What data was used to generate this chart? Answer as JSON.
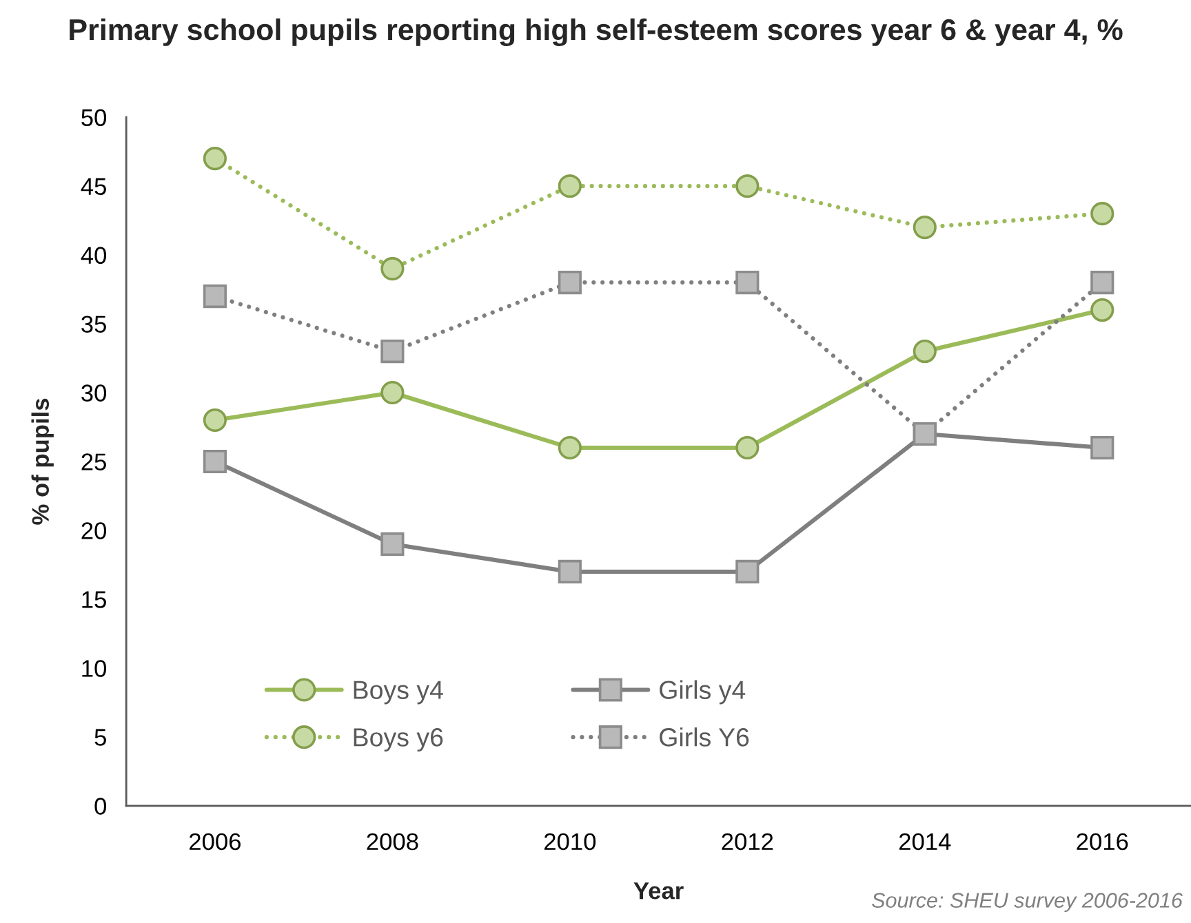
{
  "chart_data": {
    "type": "line",
    "title": "Primary school pupils reporting high self-esteem scores year 6 & year 4, %",
    "xlabel": "Year",
    "ylabel": "% of pupils",
    "categories": [
      "2006",
      "2008",
      "2010",
      "2012",
      "2014",
      "2016"
    ],
    "series": [
      {
        "name": "Boys y4",
        "color": "#9bbb59",
        "marker": "circle",
        "line_style": "solid",
        "values": [
          28,
          30,
          26,
          26,
          33,
          36
        ]
      },
      {
        "name": "Girls y4",
        "color": "#7f7f7f",
        "marker": "square",
        "line_style": "solid",
        "values": [
          25,
          19,
          17,
          17,
          27,
          26
        ]
      },
      {
        "name": "Boys y6",
        "color": "#9bbb59",
        "marker": "circle",
        "line_style": "dotted",
        "values": [
          47,
          39,
          45,
          45,
          42,
          43
        ]
      },
      {
        "name": "Girls Y6",
        "color": "#7f7f7f",
        "marker": "square",
        "line_style": "dotted",
        "values": [
          37,
          33,
          38,
          38,
          27,
          38
        ]
      }
    ],
    "ylim": [
      0,
      50
    ],
    "yticks": [
      0,
      5,
      10,
      15,
      20,
      25,
      30,
      35,
      40,
      45,
      50
    ],
    "grid": false,
    "legend": "bottom left",
    "annotations": [
      "Source: SHEU survey 2006-2016"
    ]
  }
}
